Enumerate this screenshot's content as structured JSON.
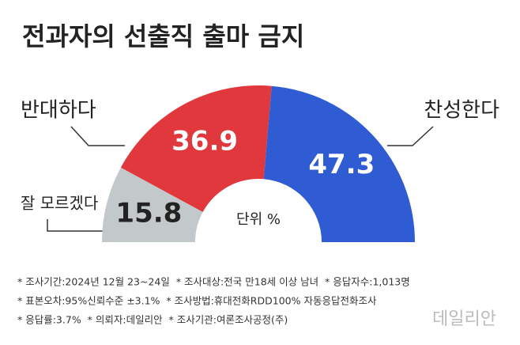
{
  "chart_data": {
    "type": "donut",
    "title": "전과자의 선출직 출마 금지",
    "unit_label": "단위 %",
    "categories": [
      "잘 모르겠다",
      "반대하다",
      "찬성한다"
    ],
    "values": [
      15.8,
      36.9,
      47.3
    ],
    "colors": [
      "#c3c8cb",
      "#e0383c",
      "#2f5cd3"
    ],
    "notes": [
      "* 조사기간:2024년 12월 23~24일  * 조사대상:전국 만18세 이상 남녀  * 응답자수:1,013명",
      "* 표본오차:95%신뢰수준 ±3.1%  * 조사방법:휴대전화RDD100% 자동응답전화조사",
      "* 응답률:3.7%  * 의뢰자:데일리안  * 조사기관:여론조사공정(주)"
    ],
    "watermark": "데일리안"
  }
}
